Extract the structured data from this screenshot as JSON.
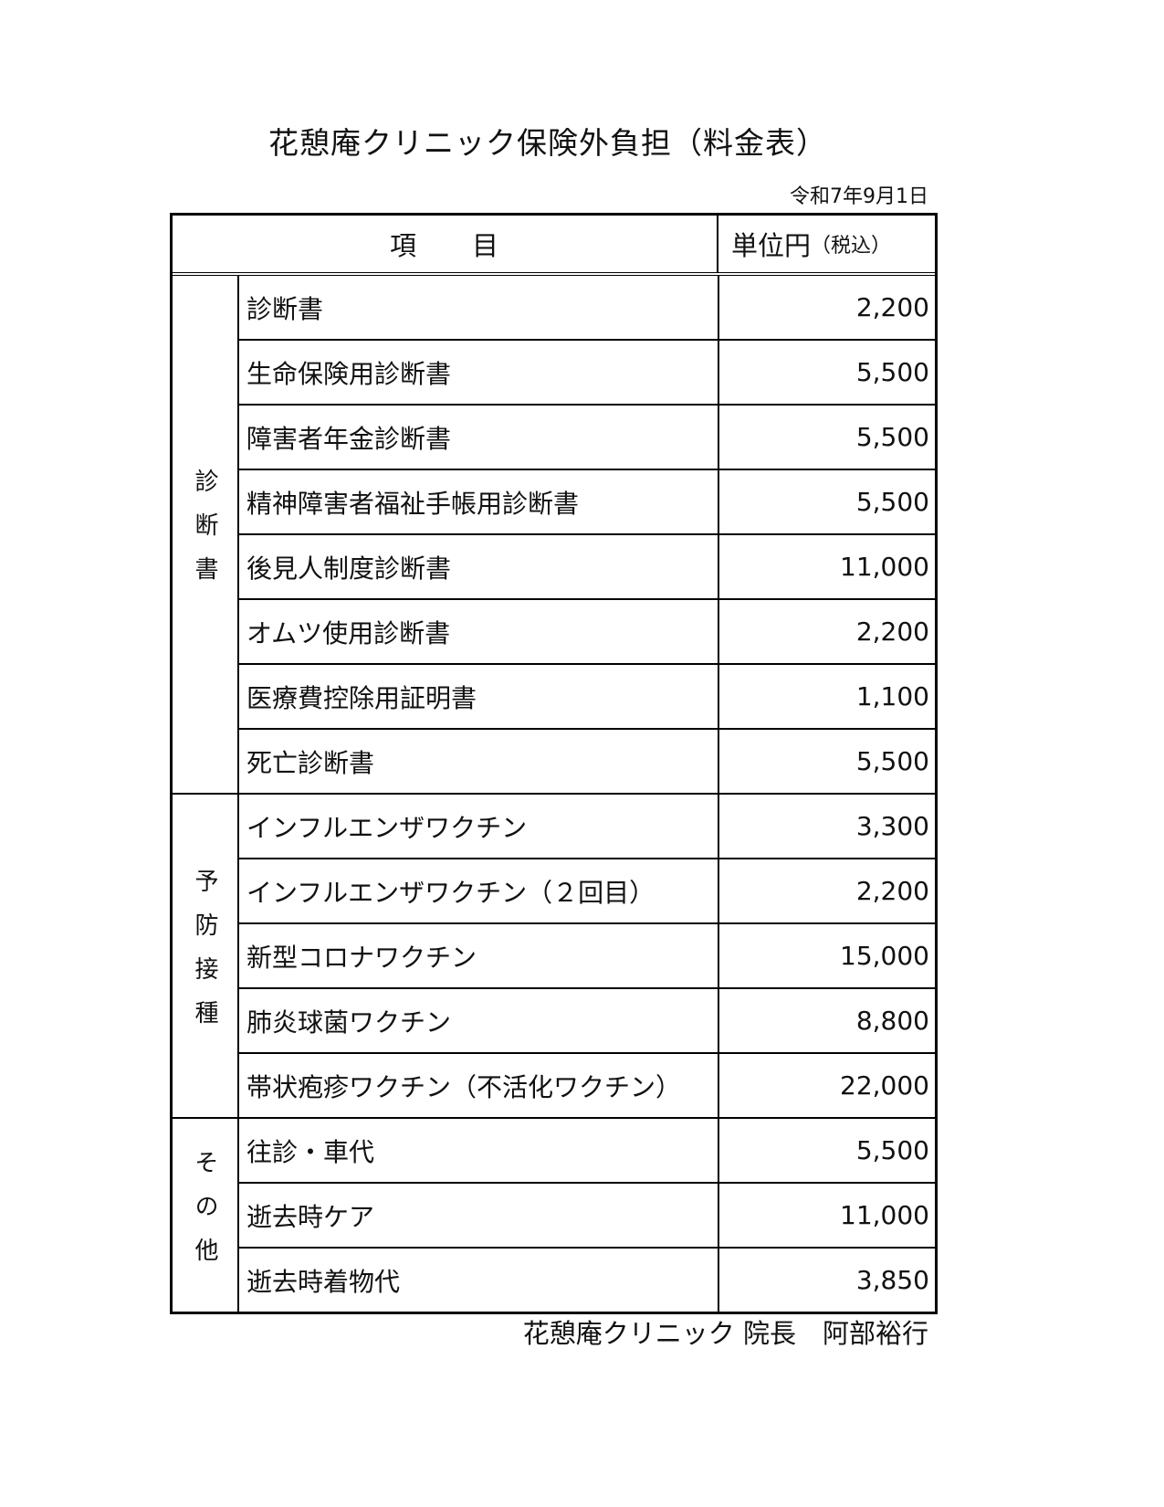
{
  "title": "花憩庵クリニック保険外負担（料金表）",
  "date": "令和7年9月1日",
  "header": {
    "item": "項　　目",
    "price": "単位円",
    "price_note": "（税込）"
  },
  "sections": [
    {
      "label": "診断書",
      "rows": [
        {
          "name": "診断書",
          "price": "2,200"
        },
        {
          "name": "生命保険用診断書",
          "price": "5,500"
        },
        {
          "name": "障害者年金診断書",
          "price": "5,500"
        },
        {
          "name": "精神障害者福祉手帳用診断書",
          "price": "5,500"
        },
        {
          "name": "後見人制度診断書",
          "price": "11,000"
        },
        {
          "name": "オムツ使用診断書",
          "price": "2,200"
        },
        {
          "name": "医療費控除用証明書",
          "price": "1,100"
        },
        {
          "name": "死亡診断書",
          "price": "5,500"
        }
      ]
    },
    {
      "label": "予防接種",
      "rows": [
        {
          "name": "インフルエンザワクチン",
          "price": "3,300"
        },
        {
          "name": "インフルエンザワクチン（２回目）",
          "price": "2,200"
        },
        {
          "name": "新型コロナワクチン",
          "price": "15,000"
        },
        {
          "name": "肺炎球菌ワクチン",
          "price": "8,800"
        },
        {
          "name": "帯状疱疹ワクチン（不活化ワクチン）",
          "price": "22,000"
        }
      ]
    },
    {
      "label": "その他",
      "rows": [
        {
          "name": "往診・車代",
          "price": "5,500"
        },
        {
          "name": "逝去時ケア",
          "price": "11,000"
        },
        {
          "name": "逝去時着物代",
          "price": "3,850"
        }
      ]
    }
  ],
  "footer": "花憩庵クリニック 院長　阿部裕行"
}
